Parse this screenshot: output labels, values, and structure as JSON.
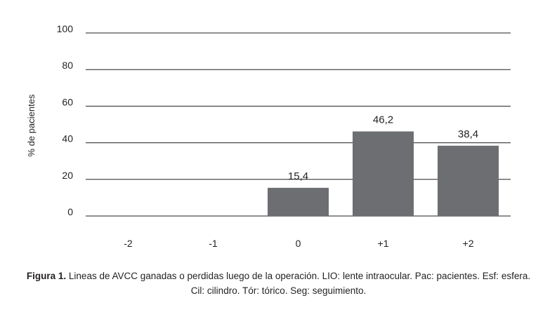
{
  "chart_data": {
    "type": "bar",
    "categories": [
      "-2",
      "-1",
      "0",
      "+1",
      "+2"
    ],
    "values": [
      0,
      0,
      15.4,
      46.2,
      38.4
    ],
    "data_labels": [
      "",
      "",
      "15,4",
      "46,2",
      "38,4"
    ],
    "ylabel": "% de pacientes",
    "xlabel": "",
    "ylim": [
      0,
      100
    ],
    "yticks": [
      "0",
      "20",
      "40",
      "60",
      "80",
      "100"
    ],
    "grid": true,
    "bar_color": "#6d6e71",
    "grid_color": "#231f20"
  },
  "caption": {
    "label": "Figura 1.",
    "line1": "Lineas de AVCC ganadas o perdidas luego de la operación. LIO: lente intraocular. Pac: pacientes. Esf: esfera.",
    "line2": "Cil: cilindro. Tór: tórico. Seg: seguimiento."
  }
}
